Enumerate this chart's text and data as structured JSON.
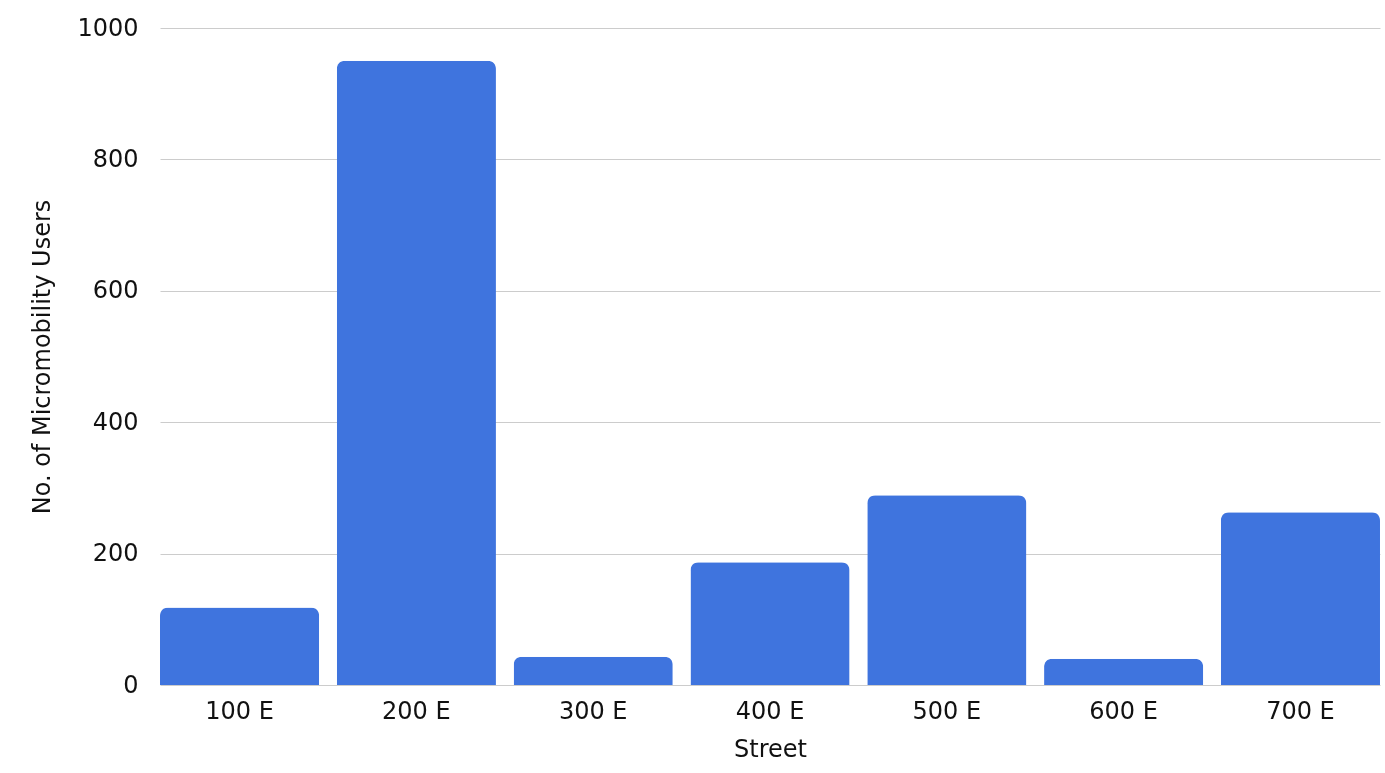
{
  "chart_data": {
    "type": "bar",
    "xlabel": "Street",
    "ylabel": "No. of Micromobility Users",
    "categories": [
      "100 E",
      "200 E",
      "300 E",
      "400 E",
      "500 E",
      "600 E",
      "700 E"
    ],
    "values": [
      118,
      950,
      43,
      187,
      289,
      40,
      263
    ],
    "color": "#3f74de",
    "ylim": [
      0,
      1000
    ],
    "yticks": [
      0,
      200,
      400,
      600,
      800,
      1000
    ],
    "grid": "y"
  }
}
